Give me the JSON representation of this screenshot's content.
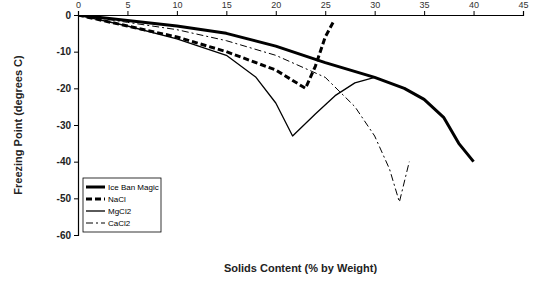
{
  "chart_data": {
    "type": "line",
    "x_label": "Solids Content (% by Weight)",
    "y_label": "Freezing Point (degrees C)",
    "xlim": [
      0,
      45
    ],
    "xticks": [
      0,
      5,
      10,
      15,
      20,
      25,
      30,
      35,
      40,
      45
    ],
    "ylim": [
      -60,
      0
    ],
    "yticks": [
      0,
      -10,
      -20,
      -30,
      -40,
      -50,
      -60
    ],
    "grid": false,
    "legend": "lower left",
    "series": [
      {
        "name": "Ice Ban Magic",
        "color": "#000000",
        "line_style": "solid",
        "x": [
          0,
          5,
          10,
          15,
          20,
          25,
          30,
          33,
          35,
          37,
          38.5,
          40
        ],
        "values": [
          0,
          -1.5,
          -3,
          -5,
          -8.5,
          -13,
          -17,
          -20,
          -23,
          -28,
          -35,
          -40
        ]
      },
      {
        "name": "NaCl",
        "color": "#000000",
        "line_style": "dashed",
        "x": [
          0,
          5,
          10,
          15,
          20,
          23,
          24,
          25,
          25.8
        ],
        "values": [
          0,
          -3,
          -6,
          -10,
          -15,
          -20,
          -14,
          -6,
          -2
        ]
      },
      {
        "name": "MgCl2",
        "color": "#000000",
        "line_style": "solid",
        "x": [
          0,
          5,
          10,
          15,
          18,
          20,
          21.7,
          24,
          26,
          28,
          30
        ],
        "values": [
          0,
          -3,
          -6.5,
          -11,
          -17,
          -24,
          -33,
          -27,
          -22,
          -18.5,
          -17
        ]
      },
      {
        "name": "CaCl2",
        "color": "#000000",
        "line_style": "dashdot",
        "x": [
          0,
          5,
          10,
          15,
          20,
          25,
          28,
          30,
          31.5,
          32.5,
          33.5
        ],
        "values": [
          0,
          -2,
          -4,
          -7,
          -11,
          -17,
          -25,
          -33,
          -42,
          -51,
          -40
        ]
      }
    ]
  }
}
